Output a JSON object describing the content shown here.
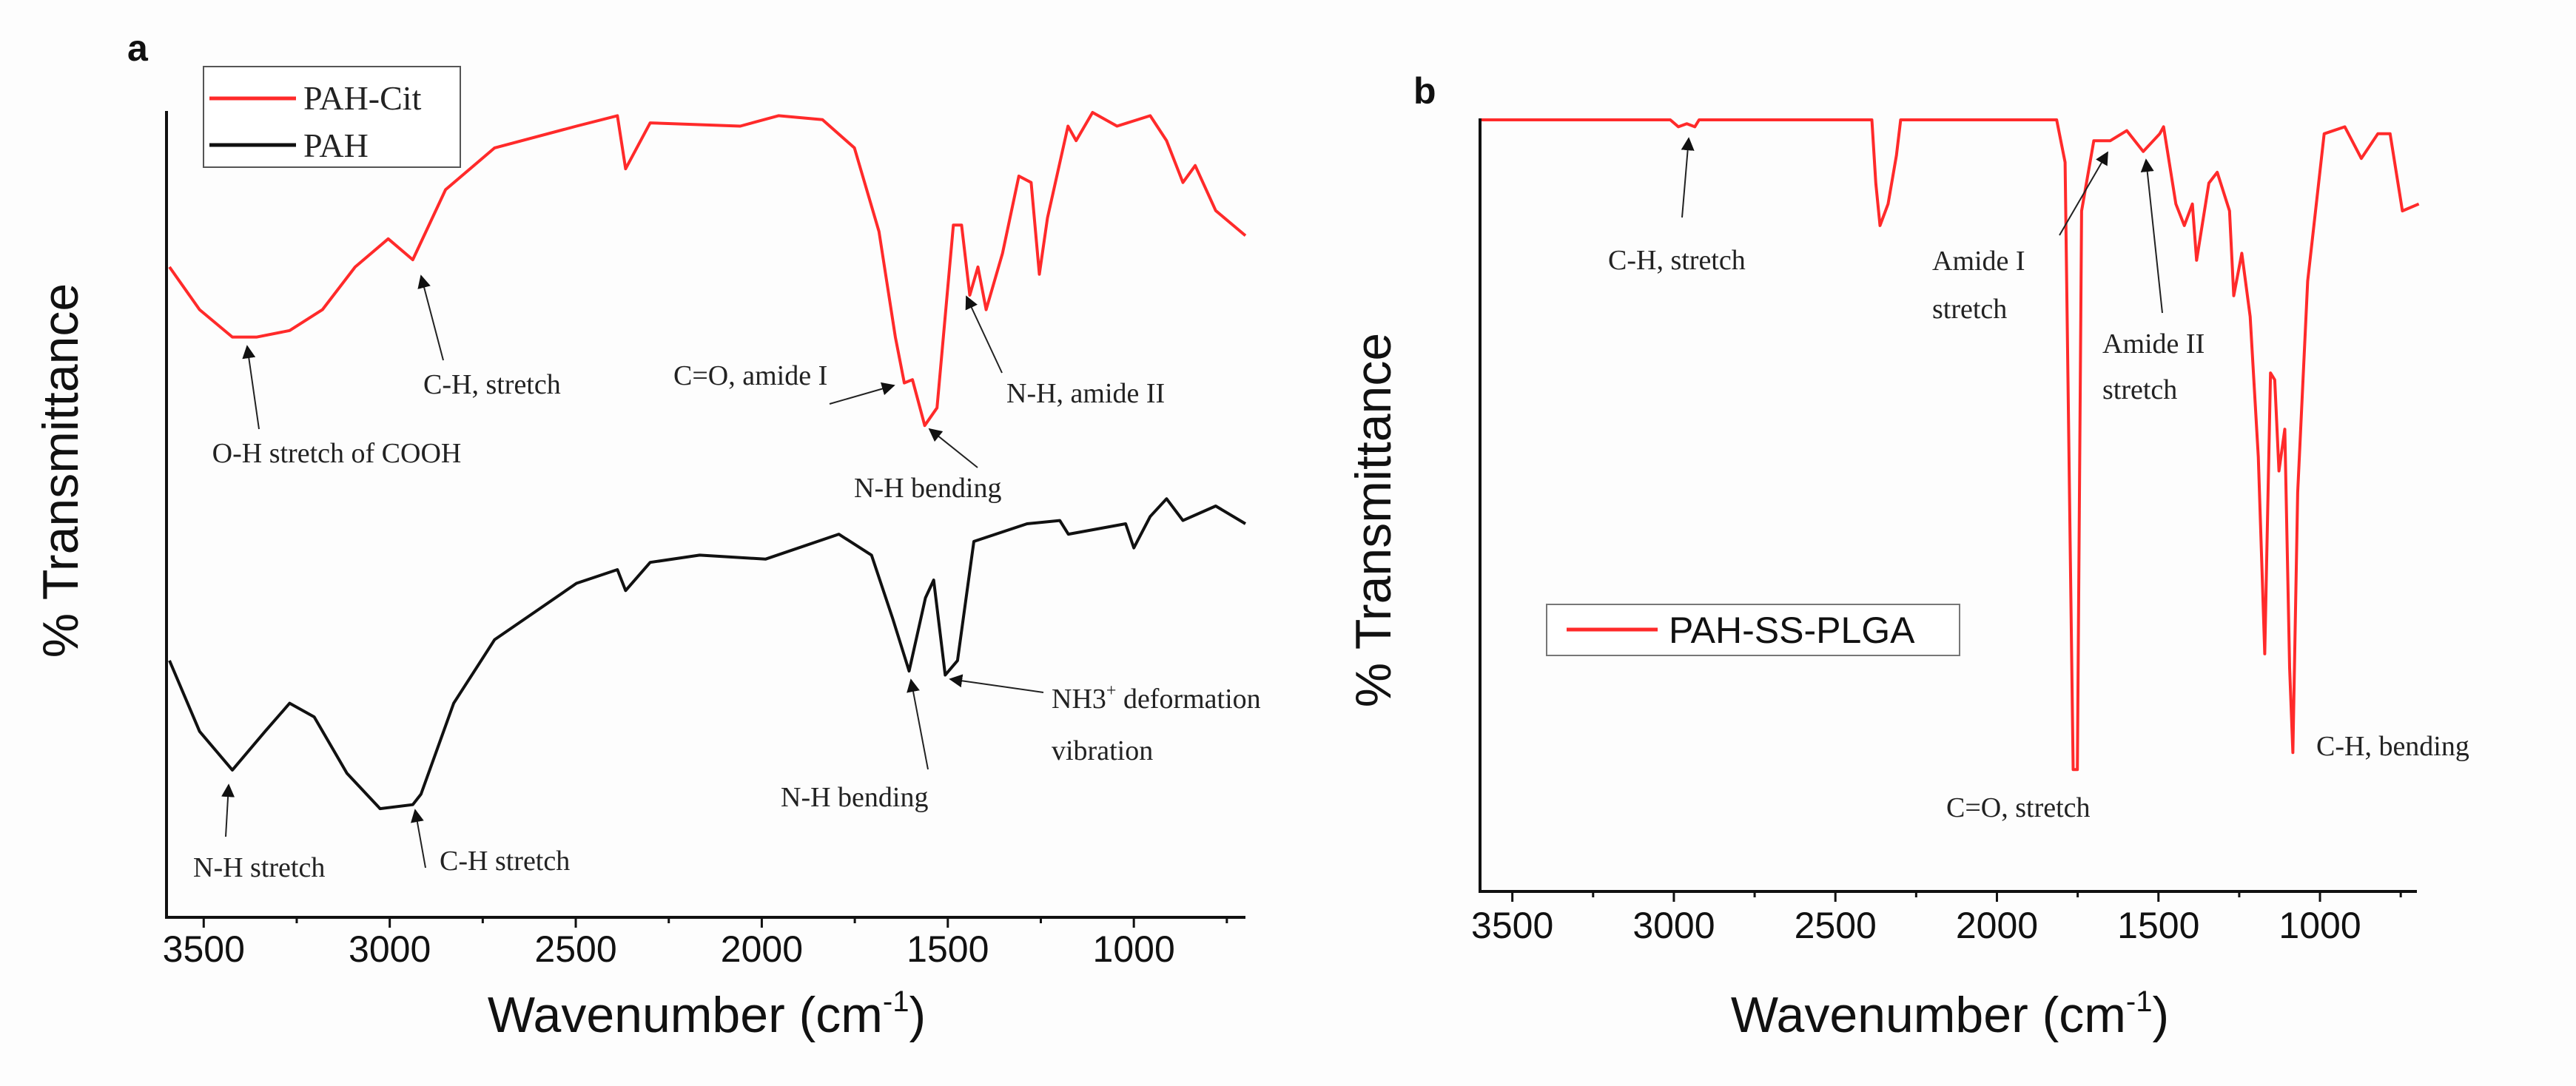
{
  "chart_data": [
    {
      "panel": "a",
      "type": "line",
      "xlabel": "Wavenumber (cm",
      "xlabel_sup": "-1",
      "xlabel_end": ")",
      "ylabel": "% Transmittance",
      "xlim": [
        3600,
        700
      ],
      "ylim": [
        0,
        100
      ],
      "x_ticks": [
        3500,
        3000,
        2500,
        2000,
        1500,
        1000
      ],
      "x_tick_labels": [
        "3500",
        "3000",
        "2500",
        "2000",
        "1500",
        "1000"
      ],
      "minor_ticks": [
        3250,
        2750,
        2250,
        1750,
        1250,
        750
      ],
      "legend": {
        "placement": "top-left",
        "entries": [
          "PAH-Cit",
          "PAH"
        ]
      },
      "series": [
        {
          "name": "PAH-Cit",
          "color": "#ff2a2a",
          "x": [
            3592,
            3511,
            3423,
            3357,
            3269,
            3181,
            3093,
            3004,
            2938,
            2850,
            2718,
            2498,
            2388,
            2366,
            2300,
            2058,
            1955,
            1837,
            1751,
            1685,
            1641,
            1617,
            1595,
            1562,
            1529,
            1485,
            1463,
            1441,
            1419,
            1397,
            1353,
            1309,
            1276,
            1254,
            1232,
            1177,
            1155,
            1111,
            1045,
            956,
            912,
            868,
            835,
            780,
            700
          ],
          "y": [
            80.8,
            75.5,
            72.1,
            72.1,
            72.9,
            75.5,
            80.8,
            84.3,
            81.7,
            90.4,
            95.6,
            98.3,
            99.6,
            93.0,
            98.7,
            98.3,
            99.6,
            99.1,
            95.6,
            85.2,
            72.1,
            66.4,
            66.8,
            61.1,
            63.3,
            86.0,
            86.0,
            77.3,
            80.8,
            75.5,
            82.5,
            92.1,
            91.3,
            79.9,
            86.9,
            98.3,
            96.5,
            100,
            98.3,
            99.6,
            96.5,
            91.3,
            93.4,
            87.8,
            84.7
          ]
        },
        {
          "name": "PAH",
          "color": "#111111",
          "x": [
            3592,
            3511,
            3423,
            3335,
            3269,
            3203,
            3115,
            3026,
            2938,
            2916,
            2828,
            2718,
            2608,
            2498,
            2388,
            2366,
            2300,
            2167,
            1990,
            1793,
            1705,
            1648,
            1604,
            1560,
            1538,
            1507,
            1474,
            1430,
            1287,
            1199,
            1176,
            1022,
            1000,
            956,
            912,
            868,
            780,
            700
          ],
          "y": [
            31.9,
            23.1,
            18.3,
            23.1,
            26.6,
            24.9,
            17.9,
            13.5,
            14.0,
            15.3,
            26.6,
            34.5,
            38.0,
            41.5,
            43.2,
            40.6,
            44.1,
            45.0,
            44.5,
            47.6,
            45.0,
            37.1,
            30.6,
            39.7,
            41.9,
            30.1,
            31.9,
            46.7,
            48.9,
            49.3,
            47.6,
            48.9,
            45.9,
            49.8,
            52.0,
            49.3,
            51.1,
            48.9
          ]
        }
      ],
      "annotations": [
        {
          "text": "O-H stretch of COOH",
          "x": 3420,
          "y": 72
        },
        {
          "text": "C-H, stretch",
          "x": 2935,
          "y": 82
        },
        {
          "text": "C=O, amide I",
          "x": 1610,
          "y": 66
        },
        {
          "text": "N-H bending",
          "x": 1560,
          "y": 61
        },
        {
          "text": "N-H, amide II",
          "x": 1440,
          "y": 77
        },
        {
          "text": "N-H stretch",
          "x": 3420,
          "y": 18
        },
        {
          "text": "C-H stretch",
          "x": 2940,
          "y": 14
        },
        {
          "text": "N-H bending",
          "x": 1604,
          "y": 30
        },
        {
          "text": "NH3",
          "text_sup": "+",
          "text_rest": " deformation",
          "text_line2": "vibration",
          "x": 1507,
          "y": 30
        }
      ]
    },
    {
      "panel": "b",
      "type": "line",
      "xlabel": "Wavenumber (cm",
      "xlabel_sup": "-1",
      "xlabel_end": ")",
      "ylabel": "% Transmittance",
      "xlim": [
        3600,
        700
      ],
      "ylim": [
        0,
        100
      ],
      "x_ticks": [
        3500,
        3000,
        2500,
        2000,
        1500,
        1000
      ],
      "x_tick_labels": [
        "3500",
        "3000",
        "2500",
        "2000",
        "1500",
        "1000"
      ],
      "minor_ticks": [
        3250,
        2750,
        2250,
        1750,
        1250,
        750
      ],
      "legend": {
        "placement": "center-left",
        "entries": [
          "PAH-SS-PLGA"
        ]
      },
      "series": [
        {
          "name": "PAH-SS-PLGA",
          "color": "#ff2a2a",
          "x": [
            3597,
            3011,
            2986,
            2960,
            2935,
            2922,
            2387,
            2375,
            2362,
            2337,
            2311,
            2298,
            1815,
            1789,
            1764,
            1751,
            1738,
            1700,
            1649,
            1598,
            1547,
            1496,
            1484,
            1446,
            1420,
            1395,
            1382,
            1344,
            1318,
            1280,
            1267,
            1242,
            1216,
            1191,
            1171,
            1153,
            1140,
            1127,
            1109,
            1094,
            1084,
            1069,
            1038,
            987,
            923,
            872,
            821,
            783,
            745,
            694
          ],
          "y": [
            100,
            100,
            99.1,
            99.5,
            99.1,
            100,
            100,
            91.8,
            86.3,
            89.1,
            95.4,
            100,
            100,
            94.5,
            15.8,
            15.8,
            88.2,
            97.3,
            97.3,
            98.6,
            95.9,
            98.2,
            99.1,
            89.1,
            86.3,
            89.1,
            81.8,
            91.8,
            93.2,
            88.2,
            77.2,
            82.7,
            74.5,
            56.3,
            30.8,
            67.2,
            66.3,
            54.5,
            59.9,
            29.0,
            18.0,
            51.7,
            79.1,
            98.2,
            99.1,
            95.0,
            98.2,
            98.2,
            88.2,
            89.1
          ]
        }
      ],
      "annotations": [
        {
          "text": "C-H, stretch",
          "x": 2950,
          "y": 98
        },
        {
          "text": "Amide I",
          "text_line2": "stretch",
          "x": 1650,
          "y": 97
        },
        {
          "text": "Amide II",
          "text_line2": "stretch",
          "x": 1550,
          "y": 96
        },
        {
          "text": "C=O, stretch",
          "x": 1757,
          "y": 16
        },
        {
          "text": "C-H, bending",
          "x": 1084,
          "y": 18
        }
      ]
    }
  ]
}
